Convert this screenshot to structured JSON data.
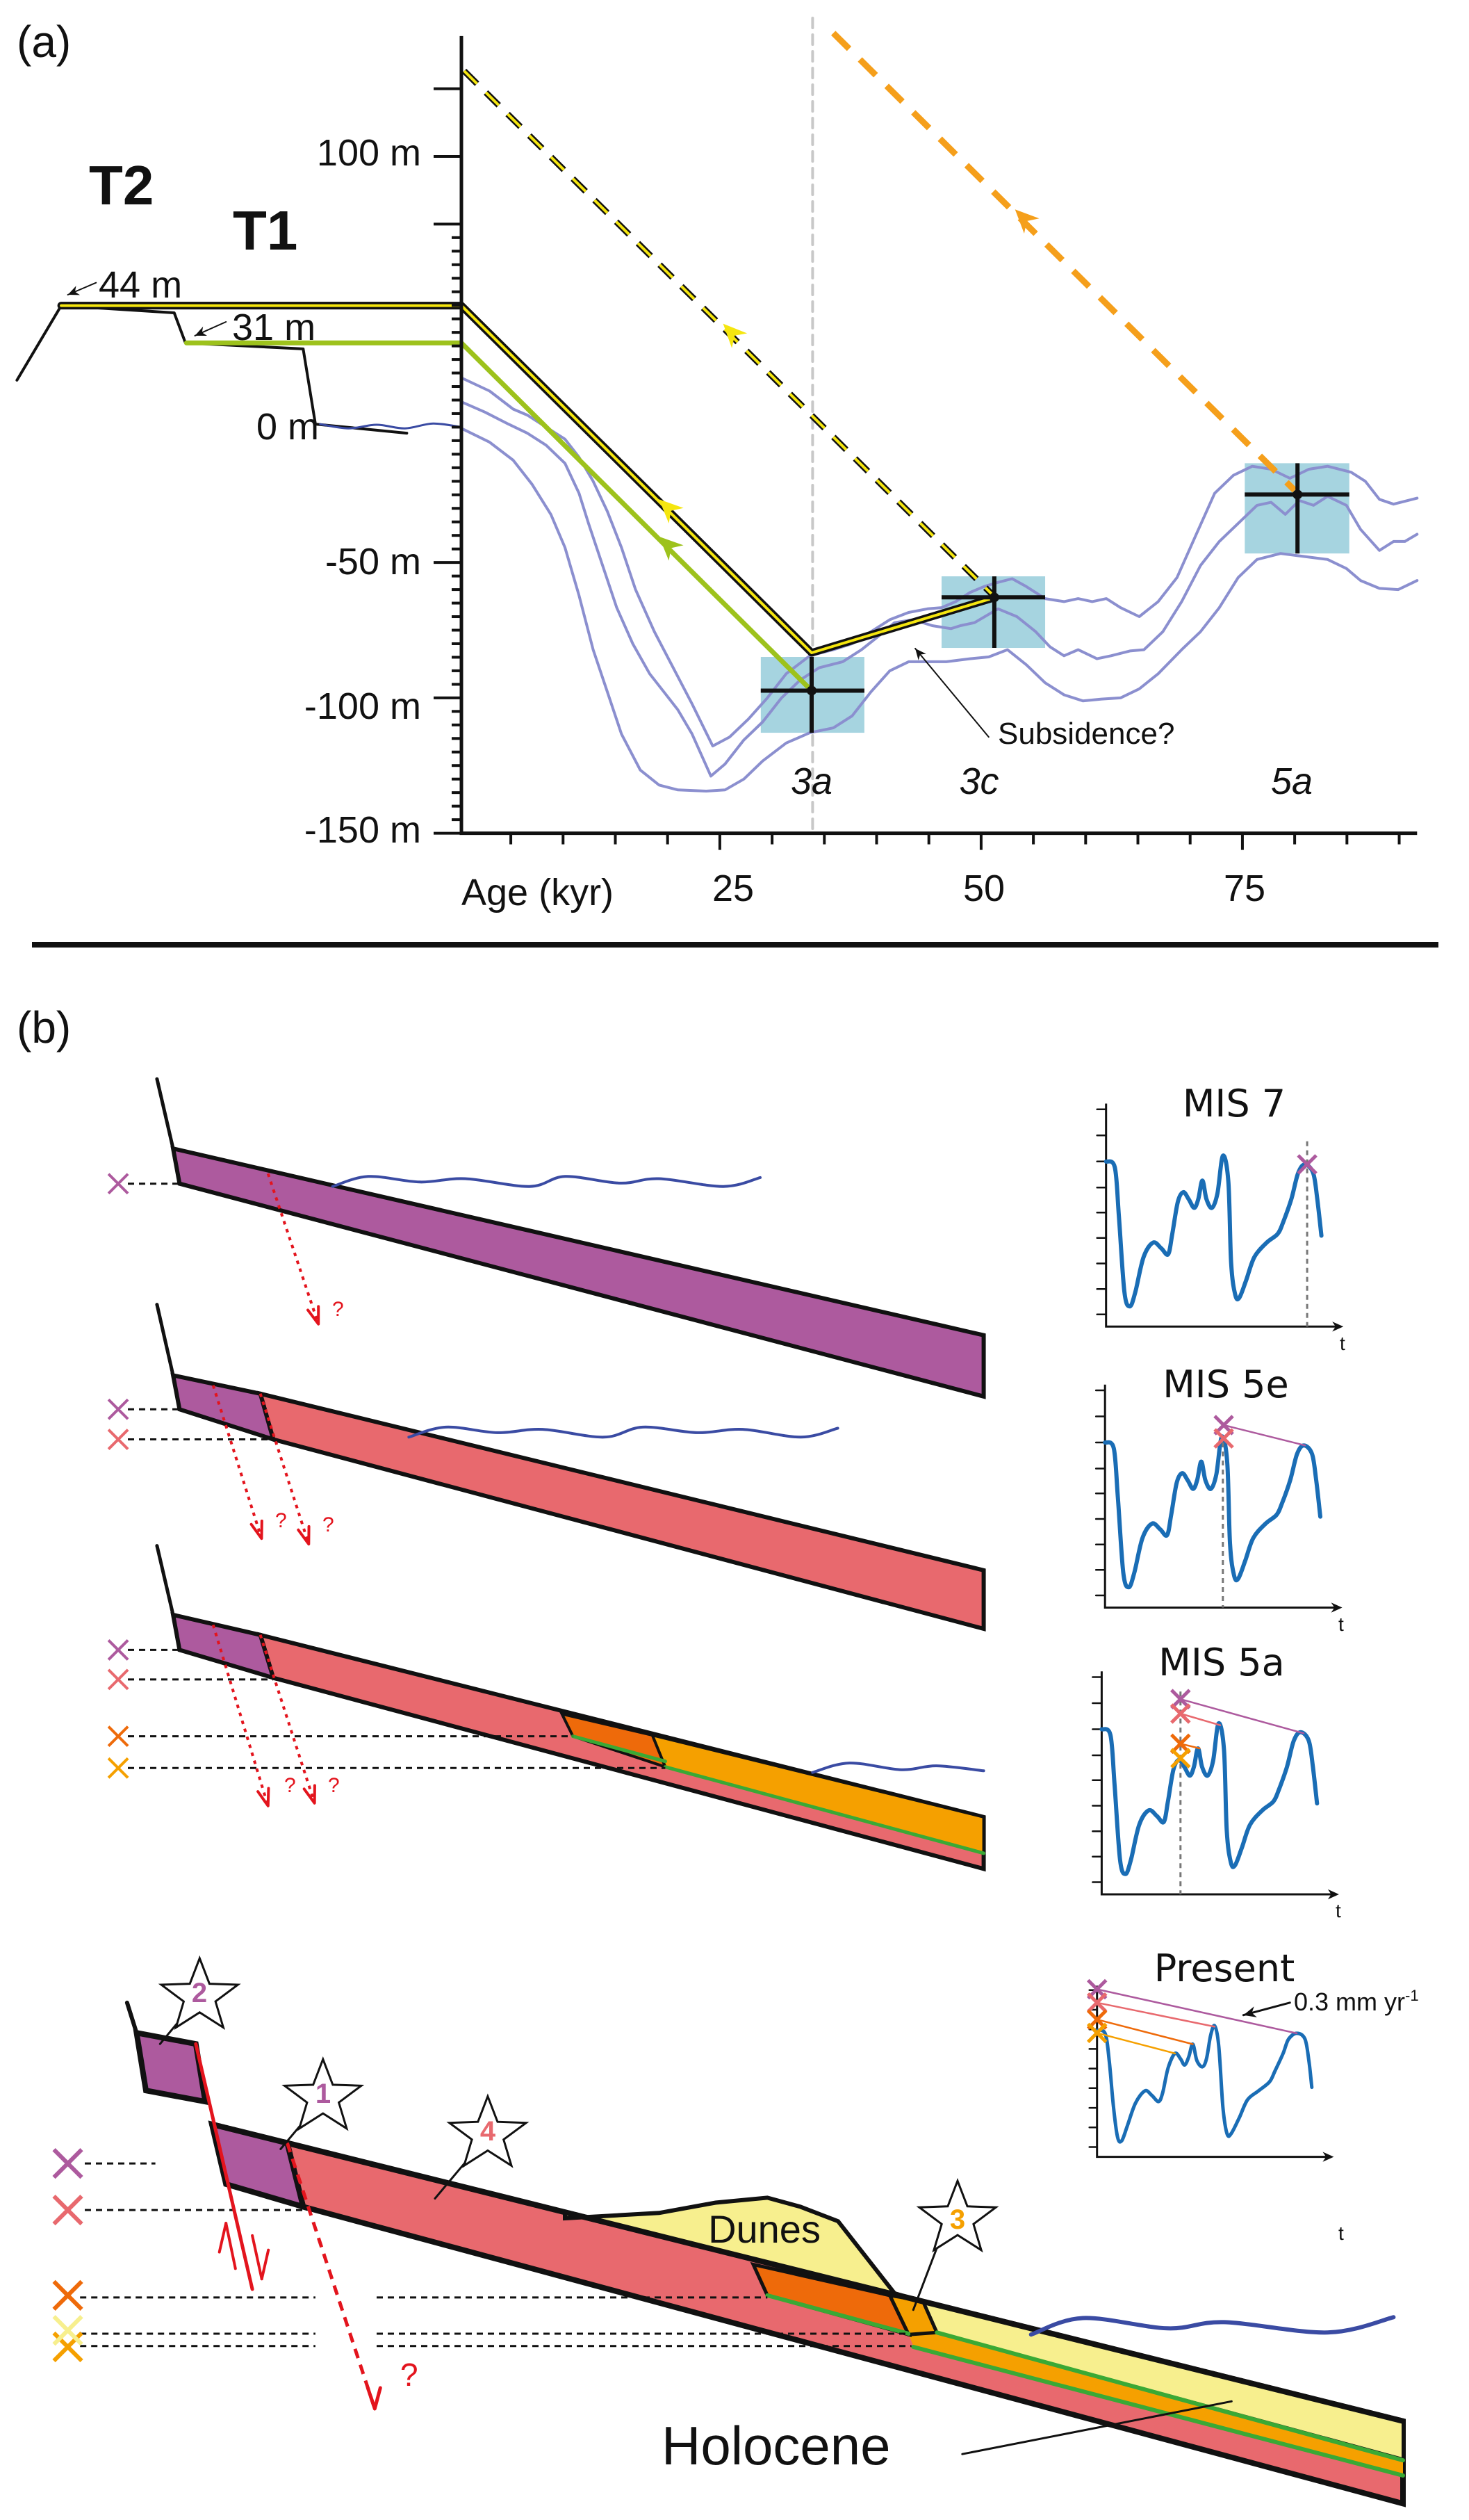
{
  "panel_a": {
    "label": "(a)",
    "y_ticks": [
      "100 m",
      "0 m",
      "-50 m",
      "-100 m",
      "-150 m"
    ],
    "x_title": "Age (kyr)",
    "x_ticks": [
      "25",
      "50",
      "75"
    ],
    "terraces": {
      "t2": "T2",
      "t1": "T1"
    },
    "elevations": {
      "t2": "44 m",
      "t1": "31 m"
    },
    "stages": [
      "3a",
      "3c",
      "5a"
    ],
    "annotation": "Subsidence?"
  },
  "panel_b": {
    "label": "(b)",
    "insets": [
      {
        "title": "MIS 7",
        "axis": "t"
      },
      {
        "title": "MIS 5e",
        "axis": "t"
      },
      {
        "title": "MIS 5a",
        "axis": "t"
      },
      {
        "title": "Present",
        "axis": "t",
        "rate": "0.3 mm yr",
        "rate_exp": "-1"
      }
    ],
    "stars": [
      "2",
      "1",
      "4",
      "3"
    ],
    "question_mark": "?",
    "labels": {
      "dunes": "Dunes",
      "holocene": "Holocene"
    }
  },
  "colors": {
    "mis7_purple": "#ad5a9e",
    "mis5e_salmon": "#e8696e",
    "mis5c_dark_orange": "#ee6a0a",
    "mis5a_orange": "#f5a000",
    "holocene_yellow": "#f7ef8e",
    "green_layer": "#3aa935",
    "sea_wave": "#3a4ba3",
    "fault_red": "#e3141d",
    "sea_level_curves": "#8b8fcf",
    "uncertainty_box": "#a6d4e0",
    "inset_curve": "#1a6db5",
    "t2_line_yellow": "#f5e60f",
    "t1_line_green": "#9dc21c",
    "orange_dashed": "#f59f1b"
  }
}
